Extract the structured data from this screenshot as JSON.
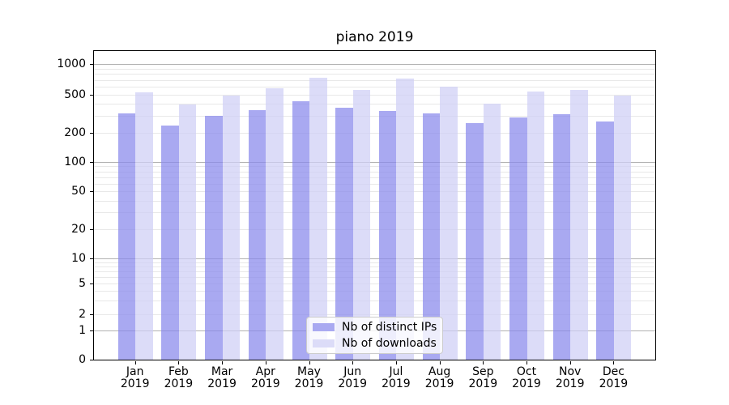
{
  "chart_data": {
    "type": "bar",
    "title": "piano 2019",
    "categories": [
      "Jan",
      "Feb",
      "Mar",
      "Apr",
      "May",
      "Jun",
      "Jul",
      "Aug",
      "Sep",
      "Oct",
      "Nov",
      "Dec"
    ],
    "year_label": "2019",
    "series": [
      {
        "name": "Nb of distinct IPs",
        "color_fill": "rgba(136,136,236,0.72)",
        "color_legend": "#a9a9f1",
        "values": [
          320,
          240,
          300,
          345,
          430,
          365,
          340,
          320,
          255,
          290,
          315,
          265
        ]
      },
      {
        "name": "Nb of downloads",
        "color_fill": "rgba(206,206,245,0.72)",
        "color_legend": "#dcdcf8",
        "values": [
          530,
          395,
          490,
          575,
          730,
          560,
          715,
          600,
          405,
          540,
          560,
          490
        ]
      }
    ],
    "yscale": "symlog",
    "y_ticks": [
      0,
      1,
      2,
      5,
      10,
      20,
      50,
      100,
      200,
      500,
      1000
    ],
    "y_major_grid_values": [
      1,
      10,
      100,
      1000
    ],
    "y_minor_grid_values": [
      2,
      3,
      4,
      5,
      6,
      7,
      8,
      9,
      20,
      30,
      40,
      50,
      60,
      70,
      80,
      90,
      200,
      300,
      400,
      500,
      600,
      700,
      800,
      900
    ],
    "ylim": [
      0,
      1350
    ],
    "xlabel": "",
    "ylabel": "",
    "grid": true,
    "legend_position": "lower center inside",
    "colors": {
      "grid_major": "#b2b2b2",
      "grid_minor": "#e8e8e8",
      "spine": "#000000",
      "text": "#000000"
    }
  }
}
